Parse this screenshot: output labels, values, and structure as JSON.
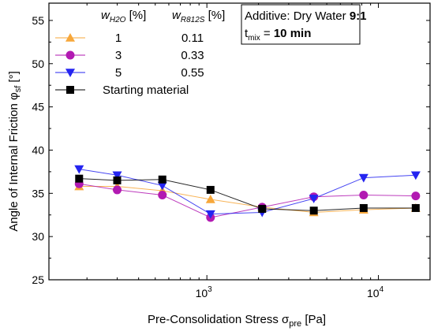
{
  "chart_data": {
    "type": "line",
    "x_scale": "log",
    "xlabel_main": "Pre-Consolidation Stress σ",
    "xlabel_sub": "pre",
    "xlabel_unit": " [Pa]",
    "ylabel_main": "Angle of Internal Friction φ",
    "ylabel_sub": "sf",
    "ylabel_unit": " [°]",
    "xlim": [
      120,
      20000
    ],
    "ylim": [
      25,
      57
    ],
    "y_ticks": [
      "25",
      "30",
      "35",
      "40",
      "45",
      "50",
      "55"
    ],
    "x_major_ticks": [
      {
        "value": 1000,
        "base": "10",
        "exp": "3"
      },
      {
        "value": 10000,
        "base": "10",
        "exp": "4"
      }
    ],
    "grid": false,
    "legend_header": {
      "col1_main": "w",
      "col1_sub": "H2O",
      "col1_unit": " [%]",
      "col2_main": "w",
      "col2_sub": "R812S",
      "col2_unit": " [%]"
    },
    "annotation": {
      "line1_text": "Additive: Dry Water ",
      "line1_bold": "9:1",
      "line2_main": "t",
      "line2_sub": "mix",
      "line2_eq": " = ",
      "line2_bold": "10 min"
    },
    "series": [
      {
        "col1": "1",
        "col2": "0.11",
        "marker": "triangle-up",
        "color": "#F7A73A",
        "x": [
          180,
          300,
          550,
          1050,
          2100,
          4200,
          8200,
          16500
        ],
        "y": [
          35.8,
          35.8,
          35.3,
          34.3,
          33.4,
          32.8,
          33.1,
          33.3
        ]
      },
      {
        "col1": "3",
        "col2": "0.33",
        "marker": "circle",
        "color": "#B21AB2",
        "x": [
          180,
          300,
          550,
          1050,
          2100,
          4200,
          8200,
          16500
        ],
        "y": [
          36.1,
          35.4,
          34.8,
          32.2,
          33.4,
          34.6,
          34.8,
          34.7
        ]
      },
      {
        "col1": "5",
        "col2": "0.55",
        "marker": "triangle-down",
        "color": "#2424F0",
        "x": [
          180,
          300,
          550,
          1050,
          2100,
          4200,
          8200,
          16500
        ],
        "y": [
          37.8,
          37.1,
          35.9,
          32.6,
          32.8,
          34.4,
          36.8,
          37.1
        ]
      },
      {
        "col1": "Starting material",
        "col2": "",
        "marker": "square",
        "color": "#000000",
        "x": [
          180,
          300,
          550,
          1050,
          2100,
          4200,
          8200,
          16500
        ],
        "y": [
          36.7,
          36.5,
          36.6,
          35.4,
          33.2,
          33.0,
          33.3,
          33.3
        ]
      }
    ]
  }
}
